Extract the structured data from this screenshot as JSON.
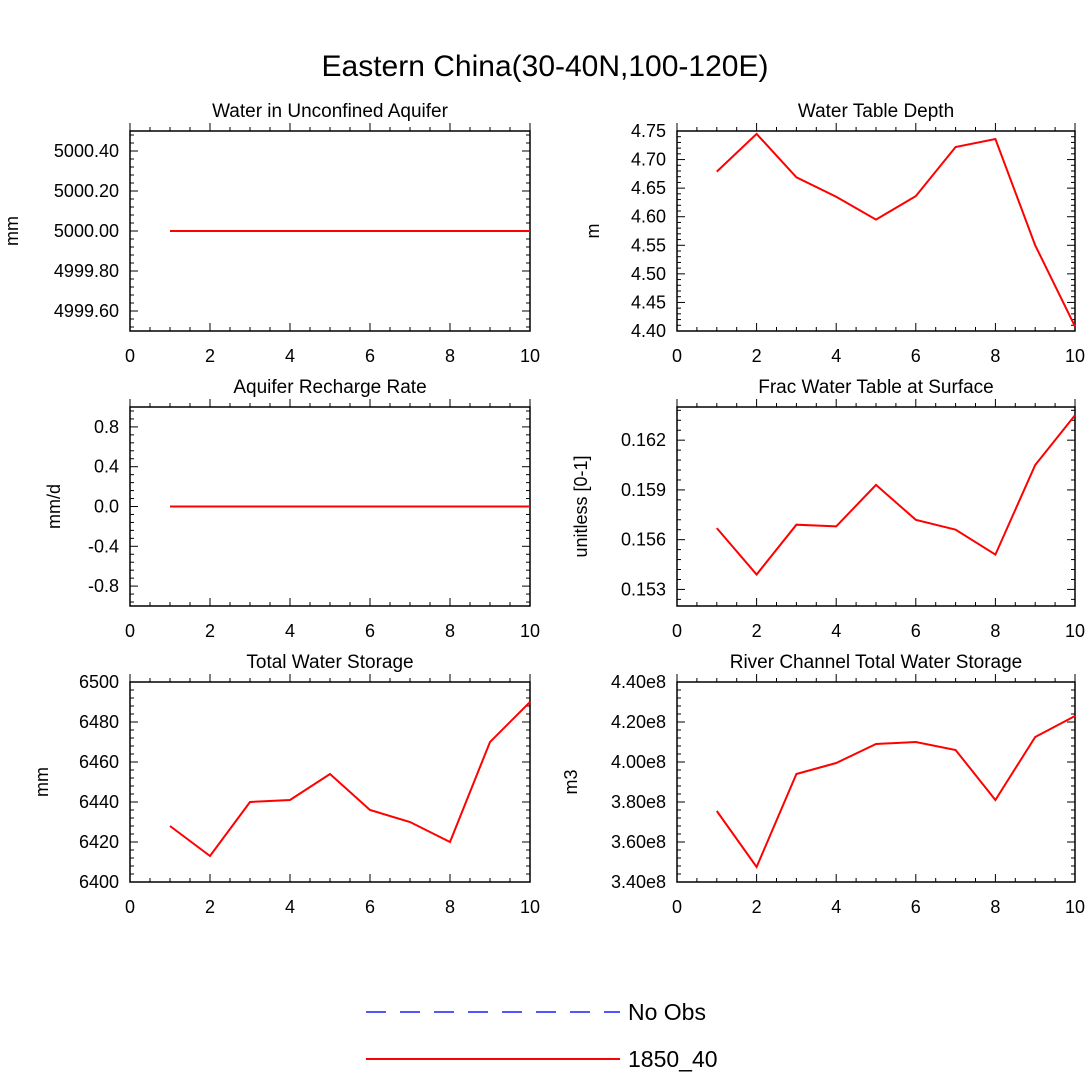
{
  "title": "Eastern China(30-40N,100-120E)",
  "colors": {
    "model": "#ff0000",
    "obs": "#5555ff",
    "axis": "#000000"
  },
  "legend": {
    "placement": "bottom-center",
    "entries": [
      {
        "label": "No Obs",
        "style": "dashed",
        "color": "#5555ff"
      },
      {
        "label": "1850_40",
        "style": "solid",
        "color": "#ff0000"
      }
    ]
  },
  "chart_data": [
    {
      "type": "line",
      "title": "Water in Unconfined Aquifer",
      "ylabel": "mm",
      "xlim": [
        0,
        10
      ],
      "ylim": [
        4999.5,
        5000.5
      ],
      "xticks": [
        0,
        2,
        4,
        6,
        8,
        10
      ],
      "yticks": [
        4999.6,
        4999.8,
        5000.0,
        5000.2,
        5000.4
      ],
      "ytick_labels": [
        "4999.60",
        "4999.80",
        "5000.00",
        "5000.20",
        "5000.40"
      ],
      "series": [
        {
          "name": "1850_40",
          "x": [
            1,
            2,
            3,
            4,
            5,
            6,
            7,
            8,
            9,
            10
          ],
          "values": [
            5000,
            5000,
            5000,
            5000,
            5000,
            5000,
            5000,
            5000,
            5000,
            5000
          ]
        }
      ]
    },
    {
      "type": "line",
      "title": "Water Table Depth",
      "ylabel": "m",
      "xlim": [
        0,
        10
      ],
      "ylim": [
        4.4,
        4.75
      ],
      "xticks": [
        0,
        2,
        4,
        6,
        8,
        10
      ],
      "yticks": [
        4.4,
        4.45,
        4.5,
        4.55,
        4.6,
        4.65,
        4.7,
        4.75
      ],
      "ytick_labels": [
        "4.40",
        "4.45",
        "4.50",
        "4.55",
        "4.60",
        "4.65",
        "4.70",
        "4.75"
      ],
      "series": [
        {
          "name": "1850_40",
          "x": [
            1,
            2,
            3,
            4,
            5,
            6,
            7,
            8,
            9,
            10
          ],
          "values": [
            4.679,
            4.745,
            4.669,
            4.635,
            4.595,
            4.636,
            4.722,
            4.736,
            4.55,
            4.408
          ]
        }
      ]
    },
    {
      "type": "line",
      "title": "Aquifer Recharge Rate",
      "ylabel": "mm/d",
      "xlim": [
        0,
        10
      ],
      "ylim": [
        -1,
        1
      ],
      "xticks": [
        0,
        2,
        4,
        6,
        8,
        10
      ],
      "yticks": [
        -0.8,
        -0.4,
        0.0,
        0.4,
        0.8
      ],
      "ytick_labels": [
        "-0.8",
        "-0.4",
        "0.0",
        "0.4",
        "0.8"
      ],
      "series": [
        {
          "name": "1850_40",
          "x": [
            1,
            2,
            3,
            4,
            5,
            6,
            7,
            8,
            9,
            10
          ],
          "values": [
            0,
            0,
            0,
            0,
            0,
            0,
            0,
            0,
            0,
            0
          ]
        }
      ]
    },
    {
      "type": "line",
      "title": "Frac Water Table at Surface",
      "ylabel": "unitless [0-1]",
      "xlim": [
        0,
        10
      ],
      "ylim": [
        0.152,
        0.164
      ],
      "xticks": [
        0,
        2,
        4,
        6,
        8,
        10
      ],
      "yticks": [
        0.153,
        0.156,
        0.159,
        0.162
      ],
      "ytick_labels": [
        "0.153",
        "0.156",
        "0.159",
        "0.162"
      ],
      "series": [
        {
          "name": "1850_40",
          "x": [
            1,
            2,
            3,
            4,
            5,
            6,
            7,
            8,
            9,
            10
          ],
          "values": [
            0.1567,
            0.1539,
            0.1569,
            0.1568,
            0.1593,
            0.1572,
            0.1566,
            0.1551,
            0.1605,
            0.1635
          ]
        }
      ]
    },
    {
      "type": "line",
      "title": "Total Water Storage",
      "ylabel": "mm",
      "xlim": [
        0,
        10
      ],
      "ylim": [
        6400,
        6500
      ],
      "xticks": [
        0,
        2,
        4,
        6,
        8,
        10
      ],
      "yticks": [
        6400,
        6420,
        6440,
        6460,
        6480,
        6500
      ],
      "ytick_labels": [
        "6400",
        "6420",
        "6440",
        "6460",
        "6480",
        "6500"
      ],
      "series": [
        {
          "name": "1850_40",
          "x": [
            1,
            2,
            3,
            4,
            5,
            6,
            7,
            8,
            9,
            10
          ],
          "values": [
            6428,
            6413,
            6440,
            6441,
            6454,
            6436,
            6430,
            6420,
            6470,
            6490
          ]
        }
      ]
    },
    {
      "type": "line",
      "title": "River Channel Total Water Storage",
      "ylabel": "m3",
      "xlim": [
        0,
        10
      ],
      "ylim": [
        340000000,
        440000000
      ],
      "xticks": [
        0,
        2,
        4,
        6,
        8,
        10
      ],
      "yticks": [
        340000000,
        360000000,
        380000000,
        400000000,
        420000000,
        440000000
      ],
      "ytick_labels": [
        "3.40e8",
        "3.60e8",
        "3.80e8",
        "4.00e8",
        "4.20e8",
        "4.40e8"
      ],
      "series": [
        {
          "name": "1850_40",
          "x": [
            1,
            2,
            3,
            4,
            5,
            6,
            7,
            8,
            9,
            10
          ],
          "values": [
            375500000,
            347500000,
            394000000,
            399500000,
            409000000,
            410000000,
            406000000,
            381000000,
            412500000,
            423000000
          ]
        }
      ]
    }
  ]
}
